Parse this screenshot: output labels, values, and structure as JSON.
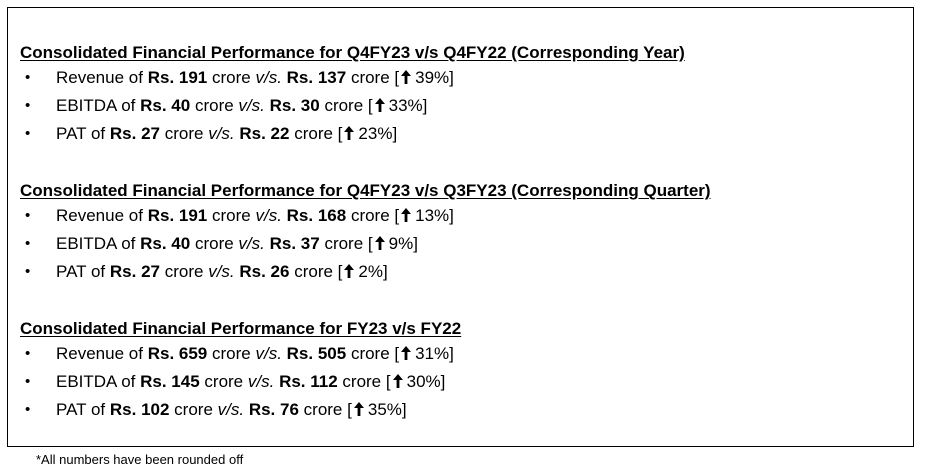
{
  "sections": [
    {
      "heading": "Consolidated Financial Performance for Q4FY23 v/s Q4FY22 (Corresponding Year)",
      "items": [
        {
          "metric": "Revenue",
          "of": "of",
          "current": "Rs. 191",
          "unit1": "crore",
          "vs": "v/s.",
          "previous": "Rs. 137",
          "unit2": "crore",
          "open": "[",
          "growth": "39%",
          "close": "]"
        },
        {
          "metric": "EBITDA",
          "of": "of",
          "current": "Rs. 40",
          "unit1": "crore",
          "vs": "v/s.",
          "previous": "Rs. 30",
          "unit2": "crore",
          "open": "[",
          "growth": "33%",
          "close": "]"
        },
        {
          "metric": "PAT",
          "of": "of",
          "current": "Rs. 27",
          "unit1": "crore",
          "vs": "v/s.",
          "previous": "Rs. 22",
          "unit2": "crore",
          "open": "[",
          "growth": "23%",
          "close": "]"
        }
      ]
    },
    {
      "heading": "Consolidated Financial Performance for Q4FY23 v/s Q3FY23 (Corresponding Quarter)",
      "items": [
        {
          "metric": "Revenue",
          "of": "of",
          "current": "Rs. 191",
          "unit1": "crore",
          "vs": "v/s.",
          "previous": "Rs. 168",
          "unit2": "crore",
          "open": "[",
          "growth": "13%",
          "close": "]"
        },
        {
          "metric": "EBITDA",
          "of": "of",
          "current": "Rs. 40",
          "unit1": "crore",
          "vs": "v/s.",
          "previous": "Rs. 37",
          "unit2": "crore",
          "open": "[",
          "growth": "9%",
          "close": "]"
        },
        {
          "metric": "PAT",
          "of": "of",
          "current": "Rs. 27",
          "unit1": "crore",
          "vs": "v/s.",
          "previous": "Rs. 26",
          "unit2": "crore",
          "open": "[",
          "growth": "2%",
          "close": "]"
        }
      ]
    },
    {
      "heading": "Consolidated Financial Performance for FY23 v/s FY22",
      "items": [
        {
          "metric": "Revenue",
          "of": "of",
          "current": "Rs. 659",
          "unit1": "crore",
          "vs": "v/s.",
          "previous": "Rs. 505",
          "unit2": "crore",
          "open": "[",
          "growth": "31%",
          "close": "]"
        },
        {
          "metric": "EBITDA",
          "of": "of",
          "current": "Rs. 145",
          "unit1": "crore",
          "vs": "v/s.",
          "previous": "Rs. 112",
          "unit2": "crore",
          "open": "[",
          "growth": "30%",
          "close": "]"
        },
        {
          "metric": "PAT",
          "of": "of",
          "current": "Rs. 102",
          "unit1": "crore",
          "vs": "v/s.",
          "previous": "Rs. 76",
          "unit2": "crore",
          "open": "[",
          "growth": "35%",
          "close": "]"
        }
      ]
    }
  ],
  "bullet_glyph": "•",
  "growth_icon": "up-arrow-icon",
  "footnote": "*All numbers have been rounded off"
}
